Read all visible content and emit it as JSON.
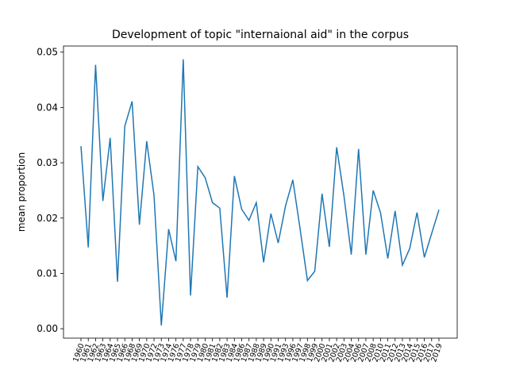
{
  "chart_data": {
    "type": "line",
    "title": "Development of topic \"internaional aid\" in the corpus",
    "ylabel": "mean proportion",
    "categories": [
      "1960",
      "1961",
      "1962",
      "1963",
      "1964",
      "1965",
      "1966",
      "1968",
      "1969",
      "1970",
      "1972",
      "1973",
      "1974",
      "1976",
      "1977",
      "1978",
      "1979",
      "1980",
      "1981",
      "1982",
      "1983",
      "1984",
      "1986",
      "1987",
      "1988",
      "1989",
      "1990",
      "1991",
      "1993",
      "1996",
      "1997",
      "1998",
      "1999",
      "2000",
      "2001",
      "2002",
      "2003",
      "2004",
      "2006",
      "2007",
      "2008",
      "2010",
      "2011",
      "2012",
      "2013",
      "2014",
      "2015",
      "2016",
      "2017",
      "2019"
    ],
    "series": [
      {
        "name": "mean proportion",
        "color": "#1f77b4",
        "values": [
          0.033,
          0.0147,
          0.0477,
          0.0231,
          0.0345,
          0.0085,
          0.0366,
          0.0411,
          0.0188,
          0.0339,
          0.0241,
          0.0006,
          0.018,
          0.0122,
          0.0487,
          0.006,
          0.0293,
          0.0273,
          0.0228,
          0.0218,
          0.0056,
          0.0276,
          0.0216,
          0.0196,
          0.0228,
          0.012,
          0.0208,
          0.0155,
          0.0222,
          0.0269,
          0.018,
          0.0087,
          0.0104,
          0.0244,
          0.0148,
          0.0328,
          0.024,
          0.0134,
          0.0325,
          0.0134,
          0.025,
          0.021,
          0.0127,
          0.0213,
          0.0115,
          0.0145,
          0.021,
          0.0129,
          0.0172,
          0.0215
        ]
      }
    ],
    "ylim": [
      -0.0017,
      0.0511
    ],
    "yticks": [
      {
        "value": 0,
        "label": "0.00"
      },
      0.01,
      0.02,
      0.03,
      0.04,
      0.05
    ]
  }
}
